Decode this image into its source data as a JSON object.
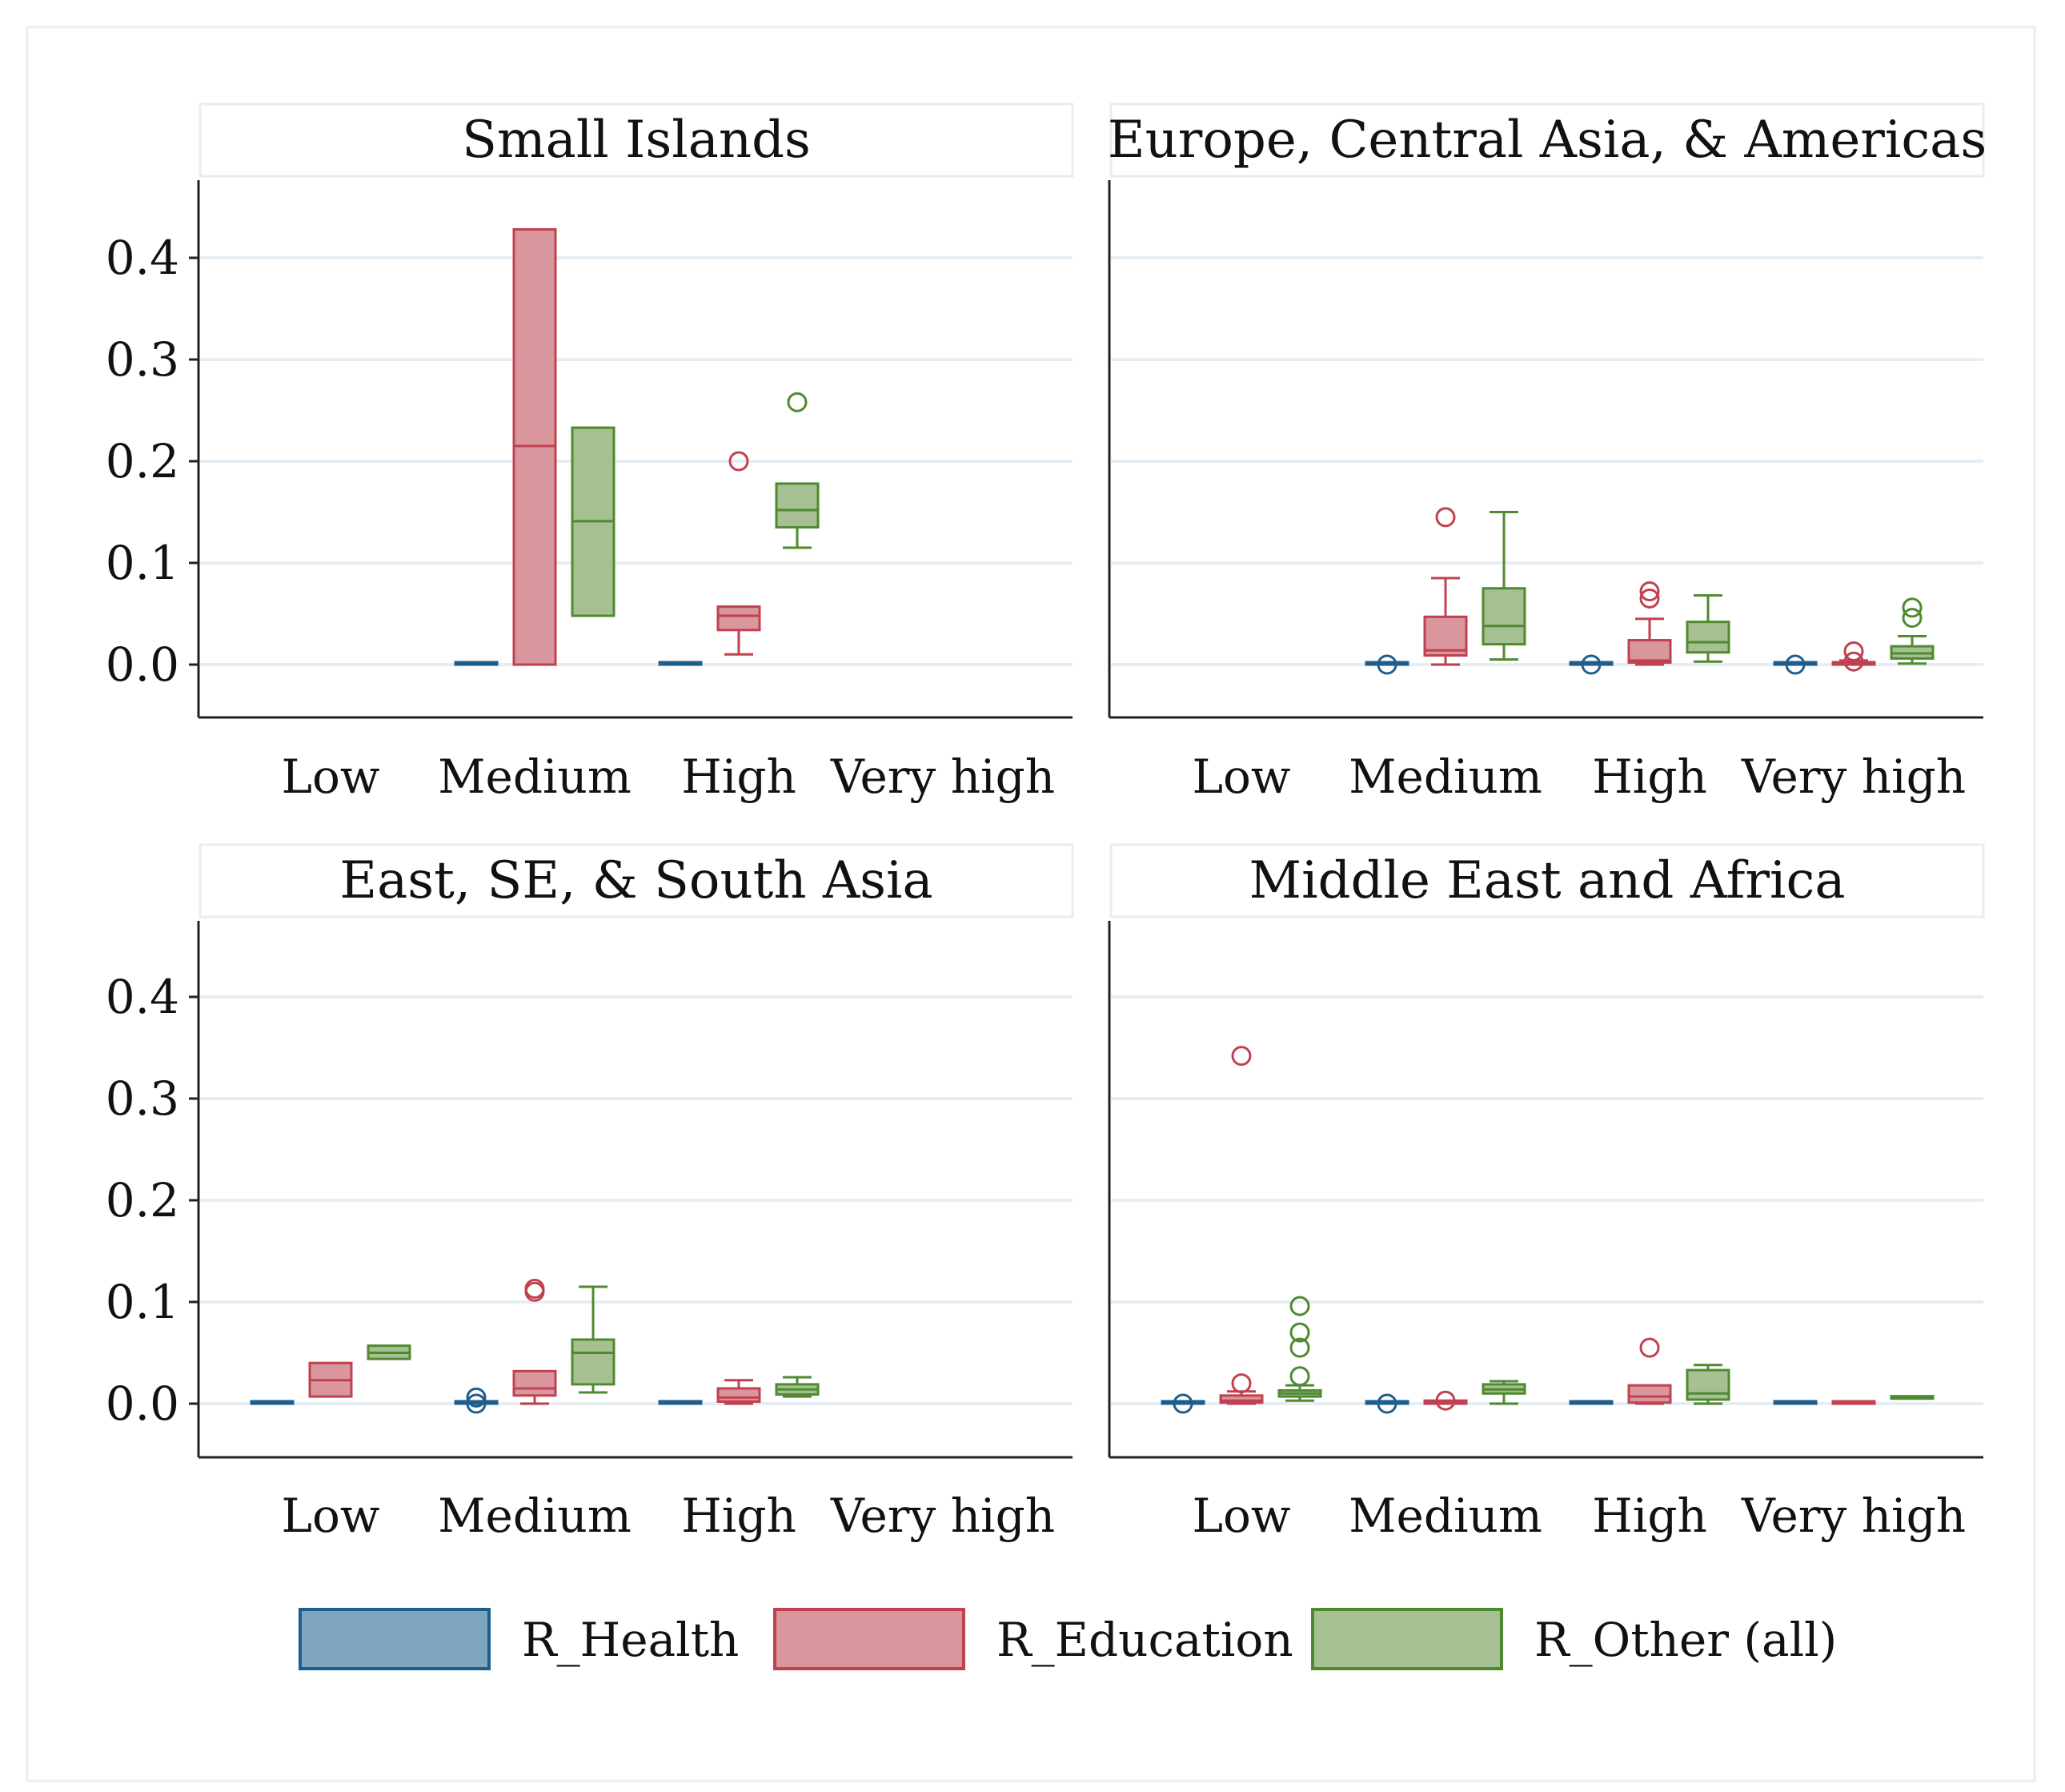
{
  "colors": {
    "health_fill": "#7fa6c0",
    "health_stroke": "#1f5e8c",
    "education_fill": "#d9969d",
    "education_stroke": "#c0414f",
    "other_fill": "#a6bf93",
    "other_stroke": "#4f8a2f",
    "grid": "#e6eef4",
    "axis": "#222222",
    "strip_border": "#e6eef4"
  },
  "chart_data": {
    "type": "box",
    "y_ticks": [
      "0.0",
      "0.1",
      "0.2",
      "0.3",
      "0.4"
    ],
    "y_tick_values": [
      0,
      0.1,
      0.2,
      0.3,
      0.4
    ],
    "ylim": [
      -0.05,
      0.48
    ],
    "categories": [
      "Low",
      "Medium",
      "High",
      "Very high"
    ],
    "series_names": [
      "R_Health",
      "R_Education",
      "R_Other (all)"
    ],
    "legend": [
      {
        "key": "health",
        "label": "R_Health"
      },
      {
        "key": "education",
        "label": "R_Education"
      },
      {
        "key": "other",
        "label": "R_Other (all)"
      }
    ],
    "panels": [
      {
        "title": "Small Islands",
        "boxes": [
          {
            "category": "Medium",
            "series": "health",
            "q1": 0,
            "median": 0.001,
            "q3": 0.002,
            "wlo": 0,
            "whi": 0.002,
            "outliers": []
          },
          {
            "category": "Medium",
            "series": "education",
            "q1": 0,
            "median": 0.215,
            "q3": 0.428,
            "wlo": 0,
            "whi": 0.428,
            "outliers": []
          },
          {
            "category": "Medium",
            "series": "other",
            "q1": 0.048,
            "median": 0.141,
            "q3": 0.233,
            "wlo": 0.048,
            "whi": 0.233,
            "outliers": []
          },
          {
            "category": "High",
            "series": "health",
            "q1": 0,
            "median": 0,
            "q3": 0.001,
            "wlo": 0,
            "whi": 0.001,
            "outliers": []
          },
          {
            "category": "High",
            "series": "education",
            "q1": 0.034,
            "median": 0.048,
            "q3": 0.057,
            "wlo": 0.01,
            "whi": 0.057,
            "outliers": [
              0.2
            ]
          },
          {
            "category": "High",
            "series": "other",
            "q1": 0.135,
            "median": 0.152,
            "q3": 0.178,
            "wlo": 0.115,
            "whi": 0.178,
            "outliers": [
              0.258
            ]
          }
        ]
      },
      {
        "title": "Europe, Central Asia, & Americas",
        "boxes": [
          {
            "category": "Medium",
            "series": "health",
            "q1": 0,
            "median": 0,
            "q3": 0.001,
            "wlo": 0,
            "whi": 0.001,
            "outliers": [
              0
            ]
          },
          {
            "category": "Medium",
            "series": "education",
            "q1": 0.009,
            "median": 0.014,
            "q3": 0.047,
            "wlo": 0,
            "whi": 0.085,
            "outliers": [
              0.145
            ]
          },
          {
            "category": "Medium",
            "series": "other",
            "q1": 0.02,
            "median": 0.038,
            "q3": 0.075,
            "wlo": 0.005,
            "whi": 0.15,
            "outliers": []
          },
          {
            "category": "High",
            "series": "health",
            "q1": 0,
            "median": 0,
            "q3": 0.001,
            "wlo": 0,
            "whi": 0.001,
            "outliers": [
              0
            ]
          },
          {
            "category": "High",
            "series": "education",
            "q1": 0.002,
            "median": 0.004,
            "q3": 0.024,
            "wlo": 0,
            "whi": 0.045,
            "outliers": [
              0.065,
              0.072
            ]
          },
          {
            "category": "High",
            "series": "other",
            "q1": 0.012,
            "median": 0.022,
            "q3": 0.042,
            "wlo": 0.003,
            "whi": 0.068,
            "outliers": []
          },
          {
            "category": "Very high",
            "series": "health",
            "q1": 0,
            "median": 0,
            "q3": 0.001,
            "wlo": 0,
            "whi": 0.001,
            "outliers": [
              0
            ]
          },
          {
            "category": "Very high",
            "series": "education",
            "q1": 0,
            "median": 0.001,
            "q3": 0.002,
            "wlo": 0,
            "whi": 0.004,
            "outliers": [
              0.003,
              0.013
            ]
          },
          {
            "category": "Very high",
            "series": "other",
            "q1": 0.006,
            "median": 0.011,
            "q3": 0.018,
            "wlo": 0.001,
            "whi": 0.028,
            "outliers": [
              0.046,
              0.056
            ]
          }
        ]
      },
      {
        "title": "East, SE, & South Asia",
        "boxes": [
          {
            "category": "Low",
            "series": "health",
            "q1": 0,
            "median": 0,
            "q3": 0.001,
            "wlo": 0,
            "whi": 0.001,
            "outliers": []
          },
          {
            "category": "Low",
            "series": "education",
            "q1": 0.007,
            "median": 0.023,
            "q3": 0.04,
            "wlo": 0.007,
            "whi": 0.04,
            "outliers": []
          },
          {
            "category": "Low",
            "series": "other",
            "q1": 0.044,
            "median": 0.05,
            "q3": 0.057,
            "wlo": 0.044,
            "whi": 0.057,
            "outliers": []
          },
          {
            "category": "Medium",
            "series": "health",
            "q1": 0,
            "median": 0,
            "q3": 0.001,
            "wlo": 0,
            "whi": 0.001,
            "outliers": [
              0,
              0.006
            ]
          },
          {
            "category": "Medium",
            "series": "education",
            "q1": 0.008,
            "median": 0.015,
            "q3": 0.032,
            "wlo": 0,
            "whi": 0.032,
            "outliers": [
              0.11,
              0.113
            ]
          },
          {
            "category": "Medium",
            "series": "other",
            "q1": 0.019,
            "median": 0.05,
            "q3": 0.063,
            "wlo": 0.011,
            "whi": 0.115,
            "outliers": []
          },
          {
            "category": "High",
            "series": "health",
            "q1": 0,
            "median": 0,
            "q3": 0.001,
            "wlo": 0,
            "whi": 0.001,
            "outliers": []
          },
          {
            "category": "High",
            "series": "education",
            "q1": 0.002,
            "median": 0.006,
            "q3": 0.015,
            "wlo": 0,
            "whi": 0.023,
            "outliers": []
          },
          {
            "category": "High",
            "series": "other",
            "q1": 0.009,
            "median": 0.014,
            "q3": 0.019,
            "wlo": 0.007,
            "whi": 0.026,
            "outliers": []
          }
        ]
      },
      {
        "title": "Middle East and Africa",
        "boxes": [
          {
            "category": "Low",
            "series": "health",
            "q1": 0,
            "median": 0,
            "q3": 0.001,
            "wlo": 0,
            "whi": 0.001,
            "outliers": [
              0
            ]
          },
          {
            "category": "Low",
            "series": "education",
            "q1": 0.001,
            "median": 0.003,
            "q3": 0.008,
            "wlo": 0,
            "whi": 0.012,
            "outliers": [
              0.02,
              0.342
            ]
          },
          {
            "category": "Low",
            "series": "other",
            "q1": 0.007,
            "median": 0.01,
            "q3": 0.013,
            "wlo": 0.003,
            "whi": 0.018,
            "outliers": [
              0.027,
              0.055,
              0.07,
              0.096
            ]
          },
          {
            "category": "Medium",
            "series": "health",
            "q1": 0,
            "median": 0,
            "q3": 0.001,
            "wlo": 0,
            "whi": 0.001,
            "outliers": [
              0
            ]
          },
          {
            "category": "Medium",
            "series": "education",
            "q1": 0,
            "median": 0.001,
            "q3": 0.003,
            "wlo": 0,
            "whi": 0.003,
            "outliers": [
              0.003
            ]
          },
          {
            "category": "Medium",
            "series": "other",
            "q1": 0.01,
            "median": 0.014,
            "q3": 0.019,
            "wlo": 0,
            "whi": 0.022,
            "outliers": []
          },
          {
            "category": "High",
            "series": "health",
            "q1": 0,
            "median": 0,
            "q3": 0.001,
            "wlo": 0,
            "whi": 0.001,
            "outliers": []
          },
          {
            "category": "High",
            "series": "education",
            "q1": 0.001,
            "median": 0.007,
            "q3": 0.018,
            "wlo": 0,
            "whi": 0.018,
            "outliers": [
              0.055
            ]
          },
          {
            "category": "High",
            "series": "other",
            "q1": 0.004,
            "median": 0.01,
            "q3": 0.033,
            "wlo": 0,
            "whi": 0.038,
            "outliers": []
          },
          {
            "category": "Very high",
            "series": "health",
            "q1": 0,
            "median": 0,
            "q3": 0.001,
            "wlo": 0,
            "whi": 0.001,
            "outliers": []
          },
          {
            "category": "Very high",
            "series": "education",
            "q1": 0,
            "median": 0,
            "q3": 0.001,
            "wlo": 0,
            "whi": 0.001,
            "outliers": []
          },
          {
            "category": "Very high",
            "series": "other",
            "q1": 0.005,
            "median": 0.005,
            "q3": 0.006,
            "wlo": 0.005,
            "whi": 0.006,
            "outliers": []
          }
        ]
      }
    ]
  }
}
